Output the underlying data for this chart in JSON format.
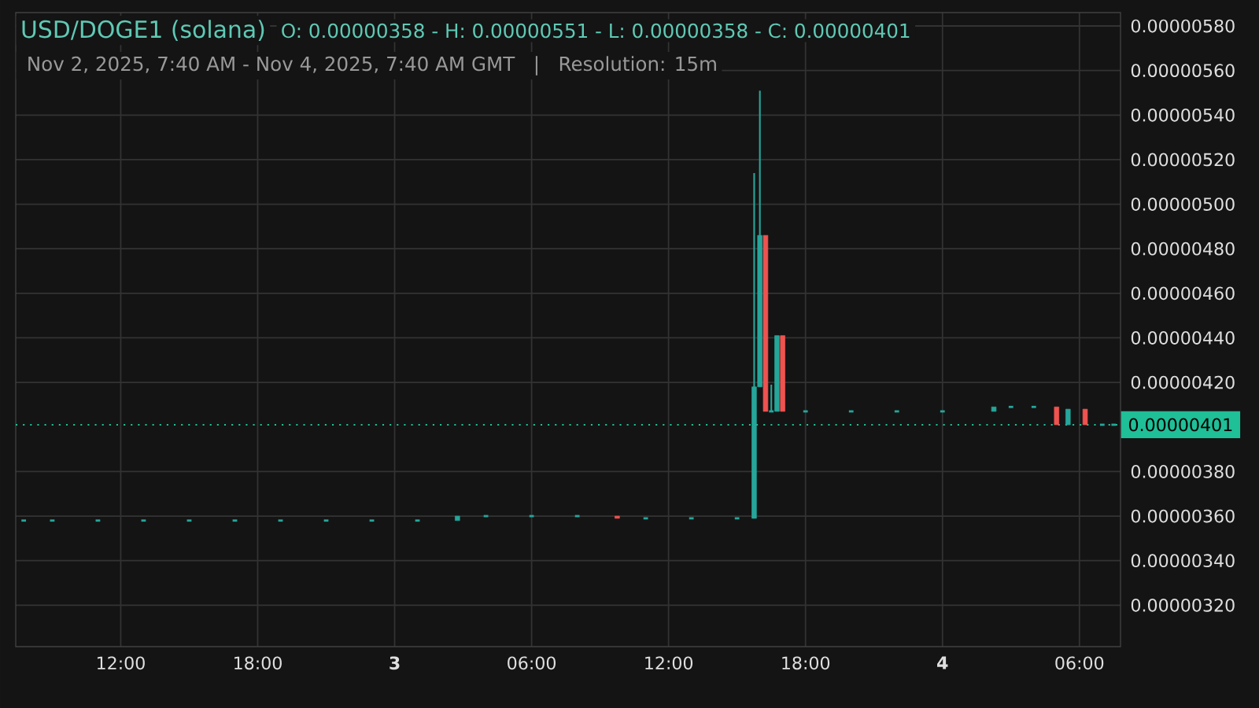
{
  "chart_data": {
    "type": "candlestick",
    "title": "USD/DOGE1 (solana)",
    "subtitle": "Nov 2, 2025, 7:40 AM - Nov 4, 2025, 7:40 AM GMT   |   Resolution: 15m",
    "annotations": [
      "O: 0.00000358 - H: 0.00000551 - L: 0.00000358 - C: 0.00000401"
    ],
    "x": [
      "2025-11-02T07:45",
      "2025-11-02T09:00",
      "2025-11-02T11:00",
      "2025-11-02T13:00",
      "2025-11-02T15:00",
      "2025-11-02T17:00",
      "2025-11-02T19:00",
      "2025-11-02T21:00",
      "2025-11-02T23:00",
      "2025-11-03T01:00",
      "2025-11-03T02:45",
      "2025-11-03T04:00",
      "2025-11-03T06:00",
      "2025-11-03T08:00",
      "2025-11-03T09:45",
      "2025-11-03T11:00",
      "2025-11-03T13:00",
      "2025-11-03T15:00",
      "2025-11-03T15:45",
      "2025-11-03T16:00",
      "2025-11-03T16:15",
      "2025-11-03T16:30",
      "2025-11-03T16:45",
      "2025-11-03T17:00",
      "2025-11-03T18:00",
      "2025-11-03T20:00",
      "2025-11-03T22:00",
      "2025-11-04T00:00",
      "2025-11-04T02:15",
      "2025-11-04T03:00",
      "2025-11-04T04:00",
      "2025-11-04T05:00",
      "2025-11-04T05:30",
      "2025-11-04T06:15",
      "2025-11-04T07:00",
      "2025-11-04T07:30"
    ],
    "ohlc": [
      [
        3.58e-06,
        3.58e-06,
        3.58e-06,
        3.58e-06
      ],
      [
        3.58e-06,
        3.58e-06,
        3.58e-06,
        3.58e-06
      ],
      [
        3.58e-06,
        3.58e-06,
        3.58e-06,
        3.58e-06
      ],
      [
        3.58e-06,
        3.58e-06,
        3.58e-06,
        3.58e-06
      ],
      [
        3.58e-06,
        3.58e-06,
        3.58e-06,
        3.58e-06
      ],
      [
        3.58e-06,
        3.58e-06,
        3.58e-06,
        3.58e-06
      ],
      [
        3.58e-06,
        3.58e-06,
        3.58e-06,
        3.58e-06
      ],
      [
        3.58e-06,
        3.58e-06,
        3.58e-06,
        3.58e-06
      ],
      [
        3.58e-06,
        3.58e-06,
        3.58e-06,
        3.58e-06
      ],
      [
        3.58e-06,
        3.58e-06,
        3.58e-06,
        3.58e-06
      ],
      [
        3.58e-06,
        3.6e-06,
        3.58e-06,
        3.6e-06
      ],
      [
        3.6e-06,
        3.6e-06,
        3.6e-06,
        3.6e-06
      ],
      [
        3.6e-06,
        3.6e-06,
        3.6e-06,
        3.6e-06
      ],
      [
        3.6e-06,
        3.6e-06,
        3.6e-06,
        3.6e-06
      ],
      [
        3.6e-06,
        3.6e-06,
        3.59e-06,
        3.59e-06
      ],
      [
        3.59e-06,
        3.59e-06,
        3.59e-06,
        3.59e-06
      ],
      [
        3.59e-06,
        3.59e-06,
        3.59e-06,
        3.59e-06
      ],
      [
        3.59e-06,
        3.59e-06,
        3.59e-06,
        3.59e-06
      ],
      [
        3.59e-06,
        5.14e-06,
        3.59e-06,
        4.18e-06
      ],
      [
        4.18e-06,
        5.51e-06,
        4.18e-06,
        4.86e-06
      ],
      [
        4.86e-06,
        4.86e-06,
        4.07e-06,
        4.07e-06
      ],
      [
        4.07e-06,
        4.19e-06,
        4.07e-06,
        4.07e-06
      ],
      [
        4.07e-06,
        4.41e-06,
        4.07e-06,
        4.41e-06
      ],
      [
        4.41e-06,
        4.41e-06,
        4.07e-06,
        4.07e-06
      ],
      [
        4.07e-06,
        4.07e-06,
        4.07e-06,
        4.07e-06
      ],
      [
        4.07e-06,
        4.07e-06,
        4.07e-06,
        4.07e-06
      ],
      [
        4.07e-06,
        4.07e-06,
        4.07e-06,
        4.07e-06
      ],
      [
        4.07e-06,
        4.07e-06,
        4.07e-06,
        4.07e-06
      ],
      [
        4.07e-06,
        4.09e-06,
        4.07e-06,
        4.09e-06
      ],
      [
        4.09e-06,
        4.09e-06,
        4.09e-06,
        4.09e-06
      ],
      [
        4.09e-06,
        4.09e-06,
        4.09e-06,
        4.09e-06
      ],
      [
        4.09e-06,
        4.09e-06,
        4.01e-06,
        4.01e-06
      ],
      [
        4.01e-06,
        4.08e-06,
        4.01e-06,
        4.08e-06
      ],
      [
        4.08e-06,
        4.08e-06,
        4.01e-06,
        4.01e-06
      ],
      [
        4.01e-06,
        4.01e-06,
        4.01e-06,
        4.01e-06
      ],
      [
        4.01e-06,
        4.01e-06,
        4.01e-06,
        4.01e-06
      ]
    ],
    "colors": [
      "#26a69a",
      "#26a69a",
      "#26a69a",
      "#26a69a",
      "#26a69a",
      "#26a69a",
      "#26a69a",
      "#26a69a",
      "#26a69a",
      "#26a69a",
      "#26a69a",
      "#26a69a",
      "#26a69a",
      "#26a69a",
      "#ef5350",
      "#26a69a",
      "#26a69a",
      "#26a69a",
      "#26a69a",
      "#26a69a",
      "#ef5350",
      "#26a69a",
      "#26a69a",
      "#ef5350",
      "#26a69a",
      "#26a69a",
      "#26a69a",
      "#26a69a",
      "#26a69a",
      "#26a69a",
      "#26a69a",
      "#ef5350",
      "#26a69a",
      "#ef5350",
      "#26a69a",
      "#26a69a"
    ],
    "xlim": [
      "2025-11-02T07:24",
      "2025-11-04T07:48"
    ],
    "ylim": [
      3.014e-06,
      5.86e-06
    ],
    "xticks": [
      {
        "value": "2025-11-02T12:00",
        "label": "12:00"
      },
      {
        "value": "2025-11-02T18:00",
        "label": "18:00"
      },
      {
        "value": "2025-11-03",
        "label": "3"
      },
      {
        "value": "2025-11-03T06:00",
        "label": "06:00"
      },
      {
        "value": "2025-11-03T12:00",
        "label": "12:00"
      },
      {
        "value": "2025-11-03T18:00",
        "label": "18:00"
      },
      {
        "value": "2025-11-04",
        "label": "4"
      },
      {
        "value": "2025-11-04T06:00",
        "label": "06:00"
      }
    ],
    "yticks": [
      {
        "value": 3.2e-06,
        "label": "0.00000320"
      },
      {
        "value": 3.4e-06,
        "label": "0.00000340"
      },
      {
        "value": 3.6e-06,
        "label": "0.00000360"
      },
      {
        "value": 3.8e-06,
        "label": "0.00000380"
      },
      {
        "value": 4.2e-06,
        "label": "0.00000420"
      },
      {
        "value": 4.4e-06,
        "label": "0.00000440"
      },
      {
        "value": 4.6e-06,
        "label": "0.00000460"
      },
      {
        "value": 4.8e-06,
        "label": "0.00000480"
      },
      {
        "value": 5e-06,
        "label": "0.00000500"
      },
      {
        "value": 5.2e-06,
        "label": "0.00000520"
      },
      {
        "value": 5.4e-06,
        "label": "0.00000540"
      },
      {
        "value": 5.6e-06,
        "label": "0.00000560"
      },
      {
        "value": 5.8e-06,
        "label": "0.00000580"
      }
    ],
    "ref_lines": [
      {
        "axis": "y",
        "value": 4.01e-06,
        "label": "0.00000401",
        "color": "#1fbf97",
        "line_style": "dotted"
      }
    ],
    "grid": true
  }
}
